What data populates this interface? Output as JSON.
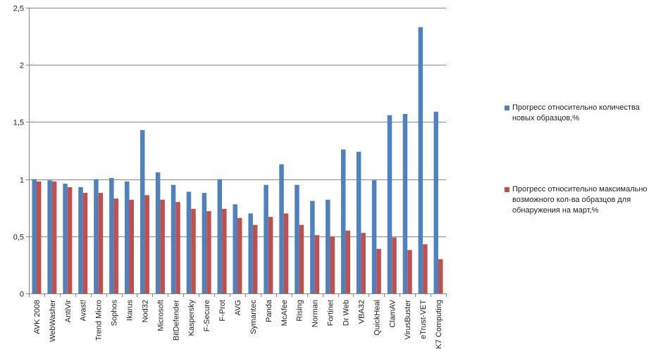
{
  "chart_data": {
    "type": "bar",
    "categories": [
      "AVK 2008",
      "WebWasher",
      "AntiVir",
      "Avast!",
      "Trend Micro",
      "Sophos",
      "Ikarus",
      "Nod32",
      "Microsoft",
      "BitDefender",
      "Kaspersky",
      "F-Secure",
      "F-Prot",
      "AVG",
      "Symantec",
      "Panda",
      "McAfee",
      "Rising",
      "Norman",
      "Fortinet",
      "Dr Web",
      "VBA32",
      "QuickHeal",
      "ClamAV",
      "VirusBuster",
      "eTrust-VET",
      "K7 Computing"
    ],
    "series": [
      {
        "name": "Прогресс относительно количества новых образцов,%",
        "color": "#4f81bd",
        "values": [
          1.0,
          0.99,
          0.96,
          0.93,
          1.0,
          1.01,
          0.98,
          1.43,
          1.06,
          0.95,
          0.89,
          0.88,
          1.0,
          0.78,
          0.7,
          0.95,
          1.13,
          0.95,
          0.81,
          0.82,
          1.26,
          1.24,
          0.99,
          1.56,
          1.57,
          2.33,
          1.59
        ]
      },
      {
        "name": "Прогресс относительно максимально возможного кол-ва образцов для обнаружения  на март,%",
        "color": "#c0504d",
        "values": [
          0.98,
          0.98,
          0.93,
          0.88,
          0.88,
          0.83,
          0.82,
          0.86,
          0.82,
          0.8,
          0.74,
          0.72,
          0.74,
          0.66,
          0.6,
          0.67,
          0.7,
          0.6,
          0.51,
          0.5,
          0.55,
          0.53,
          0.39,
          0.49,
          0.38,
          0.43,
          0.3
        ]
      }
    ],
    "y_ticks": [
      "0",
      "0,5",
      "1",
      "1,5",
      "2",
      "2,5"
    ],
    "ylim": [
      0,
      2.5
    ],
    "grid": true,
    "legend_position": "right"
  }
}
